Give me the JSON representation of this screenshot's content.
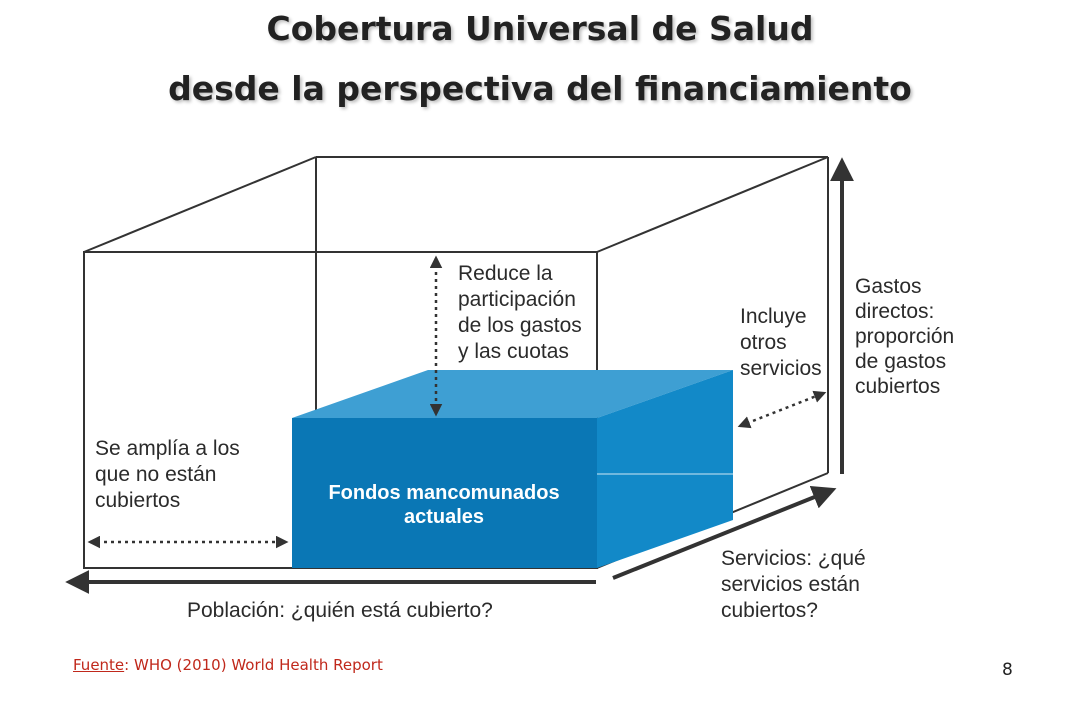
{
  "title": {
    "line1": "Cobertura Universal de Salud",
    "line2": "desde la perspectiva del financiamiento"
  },
  "diagram": {
    "inner_box_label": [
      "Fondos mancomunados",
      "actuales"
    ],
    "reduce_label": [
      "Reduce la",
      "participación",
      "de los gastos",
      "y las cuotas"
    ],
    "incluye_label": [
      "Incluye",
      "otros",
      "servicios"
    ],
    "gastos_label": [
      "Gastos",
      "directos:",
      "proporción",
      "de gastos",
      "cubiertos"
    ],
    "amplia_label": [
      "Se amplía a los",
      "que no están",
      "cubiertos"
    ],
    "poblacion_label": "Población: ¿quién está cubierto?",
    "servicios_label": [
      "Servicios: ¿qué",
      "servicios están",
      "cubiertos?"
    ]
  },
  "colors": {
    "box_front": "#0a77b5",
    "box_top": "#3e9fd3",
    "box_side": "#1289c8",
    "lines": "#333333"
  },
  "footer": {
    "source_prefix": "Fuente",
    "source_text": ": WHO (2010) World Health Report",
    "page_number": "8"
  }
}
